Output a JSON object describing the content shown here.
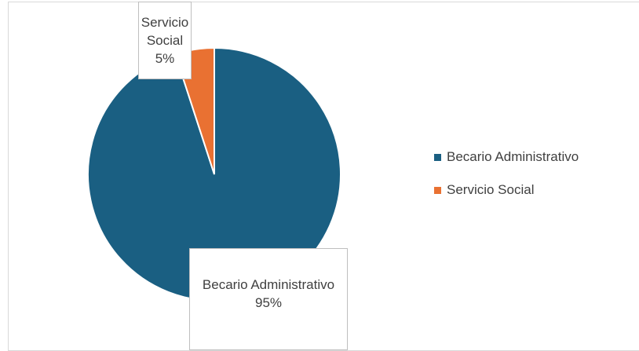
{
  "chart_data": {
    "type": "pie",
    "categories": [
      "Becario Administrativo",
      "Servicio Social"
    ],
    "values": [
      95,
      5
    ],
    "value_labels": [
      "95%",
      "5%"
    ],
    "colors": [
      "#1a5f82",
      "#e97132"
    ],
    "legend": "right"
  }
}
